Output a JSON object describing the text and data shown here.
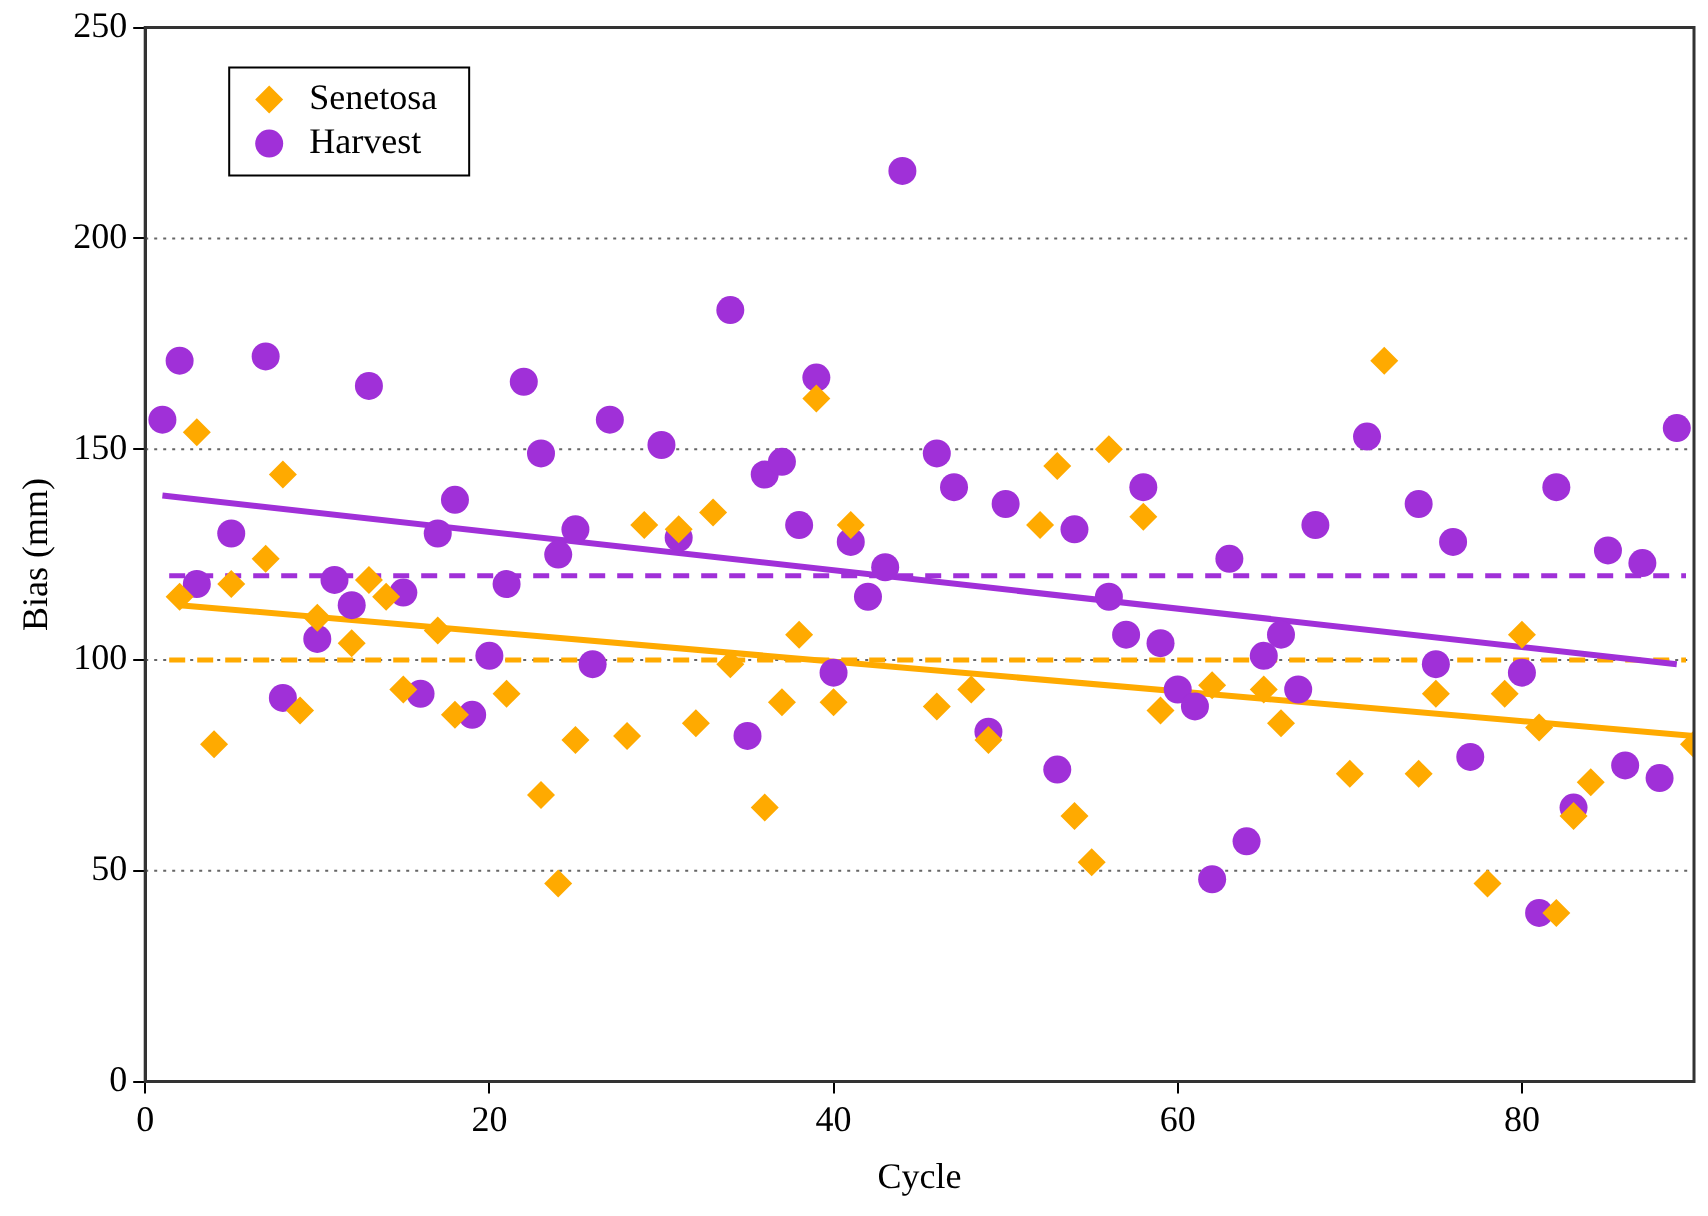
{
  "chart_data": {
    "type": "scatter",
    "xlabel": "Cycle",
    "ylabel": "Bias (mm)",
    "xlim": [
      0,
      90
    ],
    "xticks": [
      0,
      20,
      40,
      60,
      80
    ],
    "ylim": [
      0,
      250
    ],
    "yticks": [
      0,
      50,
      100,
      150,
      200,
      250
    ],
    "grid": "y",
    "legend": "top left",
    "series": [
      {
        "name": "Senetosa",
        "color": "#ffaa00",
        "marker": "diamond",
        "x": [
          2,
          3,
          4,
          5,
          7,
          8,
          9,
          10,
          12,
          13,
          14,
          15,
          17,
          18,
          21,
          23,
          24,
          25,
          28,
          29,
          31,
          32,
          33,
          34,
          36,
          37,
          38,
          39,
          40,
          41,
          46,
          48,
          49,
          52,
          53,
          54,
          55,
          56,
          58,
          59,
          62,
          65,
          66,
          70,
          72,
          74,
          75,
          78,
          79,
          80,
          81,
          82,
          83,
          84,
          90
        ],
        "values": [
          115,
          154,
          80,
          118,
          124,
          144,
          88,
          110,
          104,
          119,
          115,
          93,
          107,
          87,
          92,
          68,
          47,
          81,
          82,
          132,
          131,
          85,
          135,
          99,
          65,
          90,
          106,
          162,
          90,
          132,
          89,
          93,
          81,
          132,
          146,
          63,
          52,
          150,
          134,
          88,
          94,
          93,
          85,
          73,
          171,
          73,
          92,
          47,
          92,
          106,
          84,
          40,
          63,
          71,
          80
        ]
      },
      {
        "name": "Harvest",
        "color": "#a030d8",
        "marker": "circle",
        "x": [
          1,
          2,
          3,
          5,
          7,
          8,
          10,
          11,
          12,
          13,
          15,
          16,
          17,
          18,
          19,
          20,
          21,
          22,
          23,
          24,
          25,
          26,
          27,
          30,
          31,
          34,
          35,
          36,
          37,
          38,
          39,
          40,
          41,
          42,
          43,
          44,
          46,
          47,
          49,
          50,
          53,
          54,
          56,
          57,
          58,
          59,
          60,
          61,
          62,
          63,
          64,
          65,
          66,
          67,
          68,
          71,
          74,
          75,
          76,
          77,
          80,
          81,
          82,
          83,
          85,
          86,
          87,
          88,
          89
        ],
        "values": [
          157,
          171,
          118,
          130,
          172,
          91,
          105,
          119,
          113,
          165,
          116,
          92,
          130,
          138,
          87,
          101,
          118,
          166,
          149,
          125,
          131,
          99,
          157,
          151,
          129,
          183,
          82,
          144,
          147,
          132,
          167,
          97,
          128,
          115,
          122,
          216,
          149,
          141,
          83,
          137,
          74,
          131,
          115,
          106,
          141,
          104,
          93,
          89,
          48,
          124,
          57,
          101,
          106,
          93,
          132,
          153,
          137,
          99,
          128,
          77,
          97,
          40,
          141,
          65,
          126,
          75,
          123,
          72,
          155
        ]
      },
      {
        "type": "line",
        "color": "#ffaa00",
        "marker": "none",
        "x": [
          2,
          90
        ],
        "values": [
          113,
          82
        ]
      },
      {
        "type": "line",
        "color": "#a030d8",
        "marker": "none",
        "x": [
          1,
          89
        ],
        "values": [
          139,
          99
        ]
      }
    ],
    "ref_lines": [
      {
        "axis": "y",
        "value": 120,
        "color": "#a030d8",
        "line_style": "dashed"
      },
      {
        "axis": "y",
        "value": 100,
        "color": "#ffaa00",
        "line_style": "dashed"
      }
    ]
  }
}
